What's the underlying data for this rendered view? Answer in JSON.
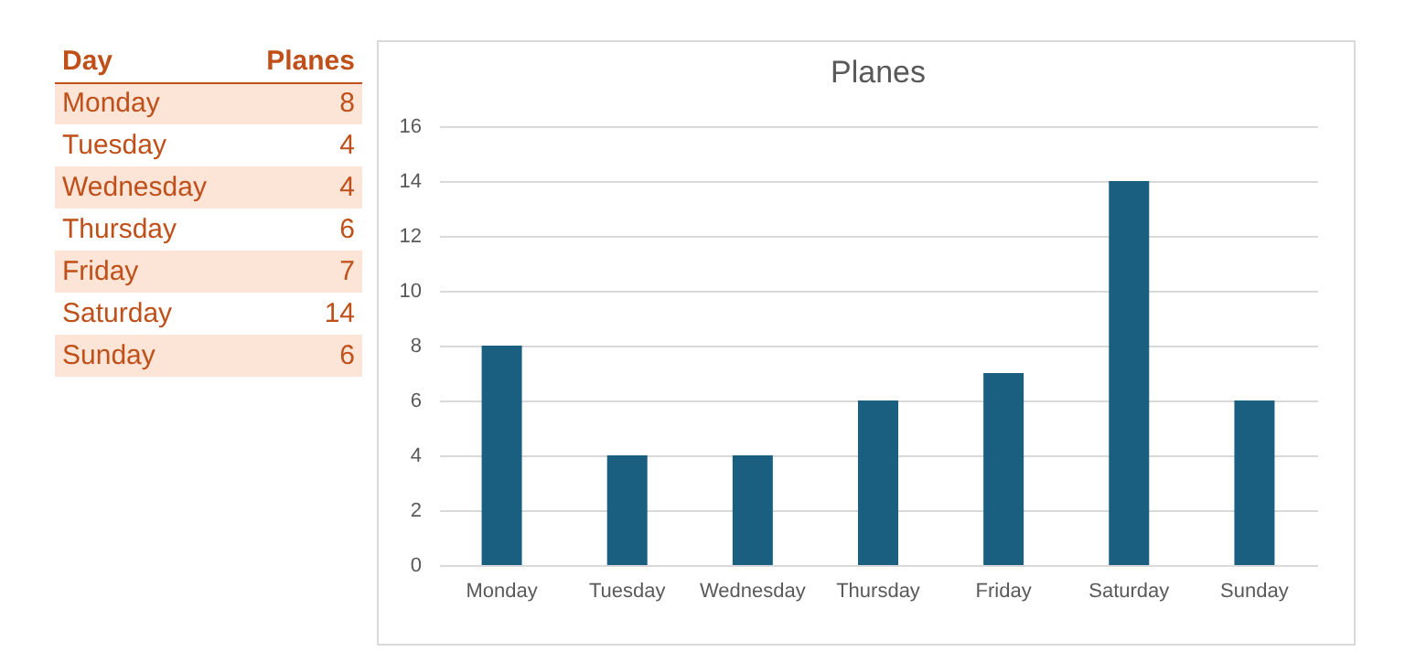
{
  "chart_data": [
    {
      "type": "other",
      "annotations": [
        "Day",
        "Planes",
        "Monday",
        "8",
        "Tuesday",
        "4",
        "Wednesday",
        "4",
        "Thursday",
        "6",
        "Friday",
        "7",
        "Saturday",
        "14",
        "Sunday",
        "6"
      ]
    },
    {
      "type": "bar",
      "title": "Planes",
      "categories": [
        "Monday",
        "Tuesday",
        "Wednesday",
        "Thursday",
        "Friday",
        "Saturday",
        "Sunday"
      ],
      "values": [
        8,
        4,
        4,
        6,
        7,
        14,
        6
      ],
      "color": "#1b5f80",
      "ylim": [
        0,
        16
      ],
      "yticks": [
        0,
        2,
        4,
        6,
        8,
        10,
        12,
        14,
        16
      ],
      "grid": "y"
    }
  ]
}
